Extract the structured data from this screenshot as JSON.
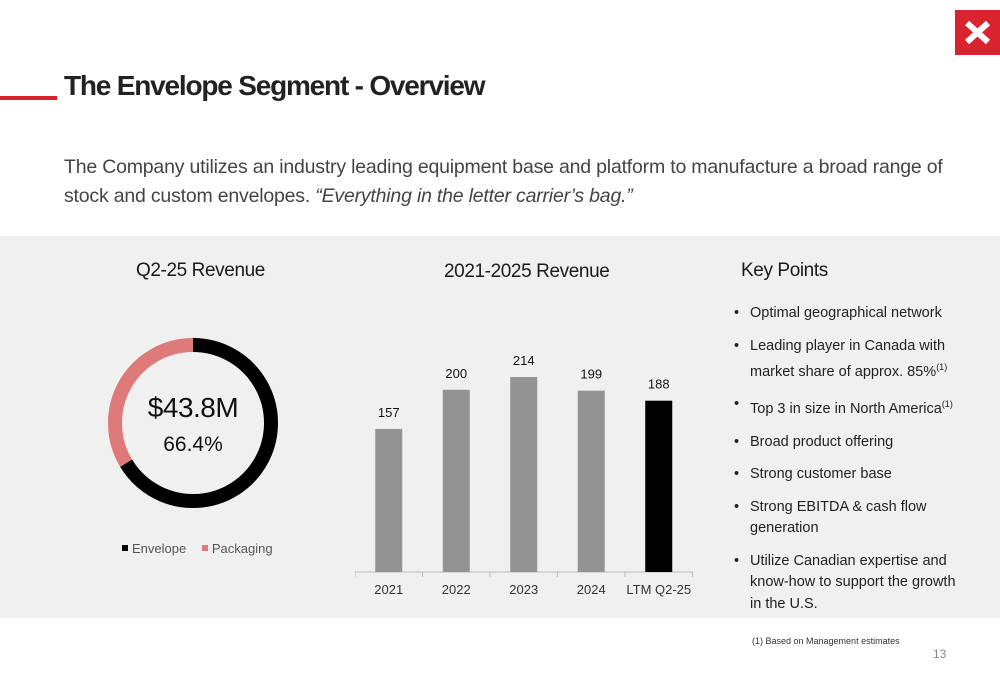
{
  "header": {
    "title": "The Envelope Segment - Overview",
    "accent_color": "#d9232e"
  },
  "logo": {
    "icon": "x-logo-icon",
    "color": "#d9232e"
  },
  "intro": {
    "text_plain": "The Company utilizes an industry leading equipment base and platform to manufacture a broad range of stock and custom envelopes. ",
    "text_quote": "“Everything in the letter carrier’s bag.”"
  },
  "donut": {
    "title": "Q2-25 Revenue",
    "center_value": "$43.8M",
    "center_pct": "66.4%",
    "legend": [
      {
        "label": "Envelope",
        "color": "#000000"
      },
      {
        "label": "Packaging",
        "color": "#de7a7a"
      }
    ]
  },
  "bar": {
    "title": "2021-2025 Revenue"
  },
  "key_points": {
    "title": "Key Points",
    "items": [
      {
        "text": "Optimal geographical network",
        "sup": ""
      },
      {
        "text": "Leading player in Canada with market share of approx. 85%",
        "sup": "(1)"
      },
      {
        "text": "Top 3 in size in North America",
        "sup": "(1)"
      },
      {
        "text": "Broad product offering",
        "sup": ""
      },
      {
        "text": "Strong customer base",
        "sup": ""
      },
      {
        "text": "Strong EBITDA & cash flow generation",
        "sup": ""
      },
      {
        "text": "Utilize Canadian expertise and know-how to support the growth in the U.S.",
        "sup": ""
      }
    ]
  },
  "footnote": "(1) Based on Management estimates",
  "page_number": "13",
  "chart_data": [
    {
      "type": "pie",
      "title": "Q2-25 Revenue",
      "donut": true,
      "categories": [
        "Envelope",
        "Packaging"
      ],
      "values": [
        66.4,
        33.6
      ],
      "colors": [
        "#000000",
        "#de7a7a"
      ],
      "legend": "bottom"
    },
    {
      "type": "bar",
      "title": "2021-2025 Revenue",
      "categories": [
        "2021",
        "2022",
        "2023",
        "2024",
        "LTM Q2-25"
      ],
      "values": [
        157,
        200,
        214,
        199,
        188
      ],
      "data_labels": [
        "157",
        "200",
        "214",
        "199",
        "188"
      ],
      "colors": [
        "#939393",
        "#939393",
        "#939393",
        "#939393",
        "#000000"
      ],
      "xlabel": "",
      "ylabel": "",
      "ylim": [
        0,
        214
      ],
      "grid": false
    }
  ]
}
